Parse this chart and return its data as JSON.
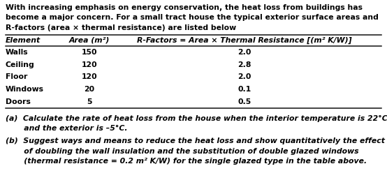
{
  "intro_line1": "With increasing emphasis on energy conservation, the heat loss from buildings has",
  "intro_line2": "become a major concern. For a small tract house the typical exterior surface areas and",
  "intro_line3": "R-factors (area × thermal resistance) are listed below",
  "col_headers": [
    "Element",
    "Area (m²)",
    "R-Factors = Area × Thermal Resistance [(m² K/W)]"
  ],
  "table_rows": [
    [
      "Walls",
      "150",
      "2.0"
    ],
    [
      "Ceiling",
      "120",
      "2.8"
    ],
    [
      "Floor",
      "120",
      "2.0"
    ],
    [
      "Windows",
      "20",
      "0.1"
    ],
    [
      "Doors",
      "5",
      "0.5"
    ]
  ],
  "qa_line1": "(a)  Calculate the rate of heat loss from the house when the interior temperature is 22°C",
  "qa_line2": "       and the exterior is –5°C.",
  "qb_line1": "(b)  Suggest ways and means to reduce the heat loss and show quantitatively the effect",
  "qb_line2": "       of doubling the wall insulation and the substitution of double glazed windows",
  "qb_line3": "       (thermal resistance = 0.2 m² K/W) for the single glazed type in the table above.",
  "bg_color": "#ffffff",
  "text_color": "#000000",
  "font_size": 7.8
}
